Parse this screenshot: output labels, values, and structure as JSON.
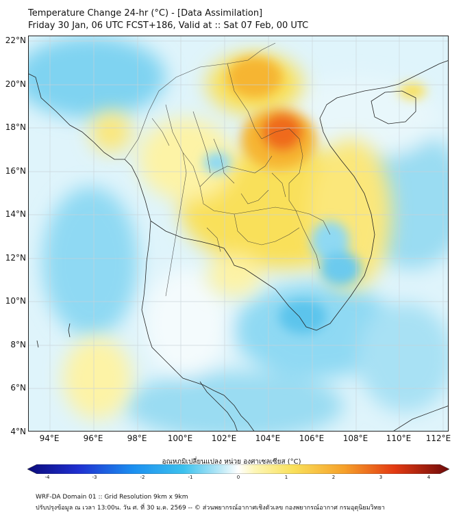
{
  "header": {
    "title_line1": "Temperature Change 24-hr (°C) - [Data Assimilation]",
    "title_line2": "Friday 30 Jan, 06 UTC FCST+186, Valid at :: Sat 07 Feb, 00 UTC"
  },
  "map": {
    "lat_labels": [
      "22°N",
      "20°N",
      "18°N",
      "16°N",
      "14°N",
      "12°N",
      "10°N",
      "8°N",
      "6°N",
      "4°N"
    ],
    "lon_labels": [
      "94°E",
      "96°E",
      "98°E",
      "100°E",
      "102°E",
      "104°E",
      "106°E",
      "108°E",
      "110°E",
      "112°E"
    ],
    "lat_range": [
      4,
      22
    ],
    "lon_range": [
      93,
      112.2
    ],
    "colors": {
      "background": "#dff4fb",
      "cool": "#8fd9f3",
      "cool_strong": "#5cc4ec",
      "neutral": "#f4fbfd",
      "warm_light": "#fdf3a6",
      "warm": "#f9e05a",
      "warm_strong": "#f6b531",
      "hot": "#ef6a1a",
      "border": "#222222",
      "grid": "#c9d3d8"
    }
  },
  "colorbar": {
    "title": "อุณหภูมิเปลี่ยนแปลง หน่วย องศาเซลเซียส (°C)",
    "ticks": [
      "-4",
      "-3",
      "-2",
      "-1",
      "0",
      "1",
      "2",
      "3",
      "4"
    ],
    "range": [
      -4,
      4
    ]
  },
  "footer": {
    "line1": "WRF-DA Domain 01 :: Grid Resolution 9km x 9km",
    "line2": "ปรับปรุงข้อมูล ณ เวลา 13:00น. วัน ศ. ที่ 30 ม.ค. 2569 -- © ส่วนพยากรณ์อากาศเชิงตัวเลข กองพยากรณ์อากาศ กรมอุตุนิยมวิทยา"
  }
}
